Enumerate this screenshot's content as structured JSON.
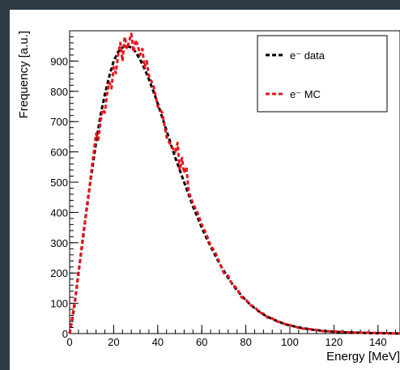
{
  "chart_data": {
    "type": "line",
    "title": "",
    "xlabel": "Energy [MeV]",
    "ylabel": "Frequency [a.u.]",
    "xlim": [
      0,
      150
    ],
    "ylim": [
      0,
      1000
    ],
    "x_ticks": [
      0,
      20,
      40,
      60,
      80,
      100,
      120,
      140
    ],
    "y_ticks": [
      0,
      100,
      200,
      300,
      400,
      500,
      600,
      700,
      800,
      900
    ],
    "legend_position": "top-right",
    "grid": false,
    "series": [
      {
        "name": "e⁻ data",
        "color": "#000000",
        "style": "dashed",
        "x": [
          0,
          2,
          4,
          6,
          8,
          10,
          12,
          14,
          16,
          18,
          20,
          22,
          24,
          26,
          28,
          30,
          32,
          34,
          36,
          38,
          40,
          42,
          44,
          46,
          48,
          50,
          52,
          54,
          56,
          58,
          60,
          62,
          64,
          66,
          68,
          70,
          72,
          74,
          76,
          78,
          80,
          82,
          84,
          86,
          88,
          90,
          92,
          94,
          96,
          98,
          100,
          105,
          110,
          115,
          120,
          125,
          130,
          135,
          140,
          145,
          150
        ],
        "y": [
          0,
          80,
          200,
          310,
          430,
          530,
          630,
          720,
          790,
          850,
          900,
          930,
          945,
          950,
          945,
          930,
          905,
          875,
          840,
          800,
          760,
          715,
          670,
          625,
          580,
          540,
          500,
          460,
          420,
          385,
          350,
          318,
          288,
          260,
          232,
          207,
          184,
          162,
          143,
          126,
          110,
          96,
          84,
          73,
          63,
          55,
          48,
          42,
          36,
          31,
          27,
          19,
          13,
          9,
          6,
          4,
          3,
          2,
          1,
          1,
          0
        ]
      },
      {
        "name": "e⁻ MC",
        "color": "#e8141b",
        "style": "dashed",
        "x": [
          0,
          2,
          4,
          6,
          8,
          10,
          11,
          12,
          13,
          14,
          15,
          16,
          17,
          18,
          19,
          20,
          21,
          22,
          23,
          24,
          25,
          26,
          27,
          28,
          29,
          30,
          31,
          32,
          33,
          34,
          35,
          36,
          38,
          40,
          42,
          44,
          46,
          48,
          49,
          50,
          51,
          52,
          53,
          54,
          56,
          58,
          60,
          62,
          64,
          66,
          68,
          70,
          72,
          74,
          76,
          78,
          80,
          82,
          84,
          86,
          88,
          90,
          92,
          94,
          96,
          98,
          100,
          105,
          110,
          115,
          120,
          125,
          130,
          135,
          140,
          145,
          150
        ],
        "y": [
          0,
          90,
          195,
          320,
          420,
          545,
          600,
          660,
          640,
          700,
          740,
          730,
          790,
          830,
          810,
          880,
          860,
          920,
          960,
          900,
          980,
          940,
          965,
          990,
          930,
          970,
          950,
          920,
          940,
          880,
          900,
          850,
          820,
          750,
          730,
          650,
          620,
          600,
          630,
          540,
          580,
          530,
          550,
          470,
          430,
          400,
          360,
          330,
          290,
          270,
          235,
          200,
          190,
          160,
          150,
          120,
          112,
          95,
          88,
          70,
          66,
          52,
          50,
          40,
          38,
          30,
          28,
          17,
          14,
          8,
          7,
          5,
          3,
          3,
          2,
          1,
          0
        ]
      }
    ]
  }
}
